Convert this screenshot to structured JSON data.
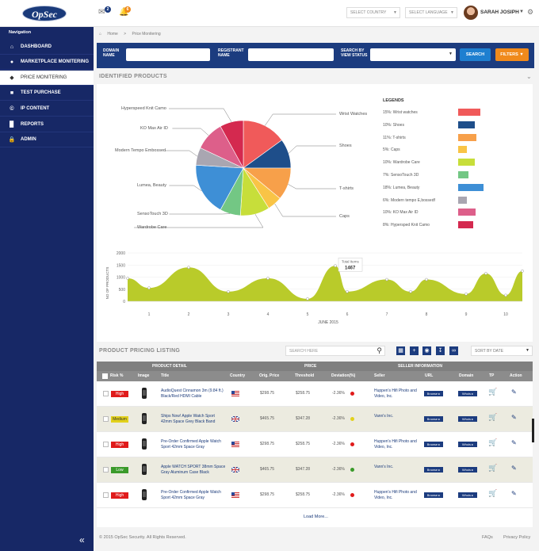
{
  "header": {
    "logo": "OpSec",
    "mail_count": "2",
    "notif_count": "6",
    "country_select": "SELECT COUNTRY",
    "language_select": "SELECT LANGUAGE",
    "user_name": "SARAH JOSIPH"
  },
  "sidebar": {
    "heading": "Navigation",
    "items": [
      {
        "label": "DASHBOARD",
        "icon": "home-icon"
      },
      {
        "label": "MARKETPLACE MONITERING",
        "icon": "user-icon"
      },
      {
        "label": "PRICE MONITERING",
        "icon": "tag-icon"
      },
      {
        "label": "TEST PURCHASE",
        "icon": "ticket-icon"
      },
      {
        "label": "IP CONTENT",
        "icon": "copyright-icon"
      },
      {
        "label": "REPORTS",
        "icon": "bar-chart-icon"
      },
      {
        "label": "ADMIN",
        "icon": "lock-icon"
      }
    ]
  },
  "breadcrumb": {
    "home": "Home",
    "sep": ">",
    "current": "Price Monitering"
  },
  "search": {
    "domain_label": "DOMAIN NAME",
    "registrant_label": "REGISTRANT NAME",
    "status_label": "SEARCH BY VIEW STATUS",
    "search_btn": "SEARCH",
    "filters_btn": "FILTERS"
  },
  "identified": {
    "title": "IDENTIFIED PRODUCTS"
  },
  "pie": {
    "labels": [
      "Wrist Watches",
      "Shoes",
      "T-shirts",
      "Caps",
      "Wardrobe Care",
      "SensoTouch 3D",
      "Lumea, Beauty",
      "Modern Tempo Embossed",
      "KO Max Air ID",
      "Hyperspeed Knit Camo"
    ]
  },
  "legend": {
    "title": "LEGENDS",
    "items": [
      {
        "text": "15%: Wrist watches",
        "color": "#f05a5a"
      },
      {
        "text": "10%: Shoes",
        "color": "#1e4e8a"
      },
      {
        "text": "11%: T-shirts",
        "color": "#f7a04a"
      },
      {
        "text": "5%: Caps",
        "color": "#f9c446"
      },
      {
        "text": "10%: Wardrobe Care",
        "color": "#c7de3a"
      },
      {
        "text": "7%: SensoTouch 3D",
        "color": "#73c784"
      },
      {
        "text": "18%: Lumea, Beauty",
        "color": "#3e8fd6"
      },
      {
        "text": "6%: Modern tempo E,bossedf",
        "color": "#a9a6b1"
      },
      {
        "text": "10%: KO Max Air ID",
        "color": "#dd5f8a"
      },
      {
        "text": "8%: Hypersped Knit Camo",
        "color": "#d4294f"
      }
    ]
  },
  "chart_data": [
    {
      "type": "pie",
      "labels": [
        "Wrist Watches",
        "Shoes",
        "T-shirts",
        "Caps",
        "Wardrobe Care",
        "SensoTouch 3D",
        "Lumea, Beauty",
        "Modern Tempo Embossed",
        "KO Max Air ID",
        "Hyperspeed Knit Camo"
      ],
      "values": [
        15,
        10,
        11,
        5,
        10,
        7,
        18,
        6,
        10,
        8
      ],
      "colors": [
        "#f05a5a",
        "#1e4e8a",
        "#f7a04a",
        "#f9c446",
        "#c7de3a",
        "#73c784",
        "#3e8fd6",
        "#a9a6b1",
        "#dd5f8a",
        "#d4294f"
      ]
    },
    {
      "type": "area",
      "ylabel": "NO OF PRODUCTS",
      "xlabel": "JUNE 2015",
      "ylim": [
        0,
        2000
      ],
      "yticks": [
        "2000",
        "1500",
        "1000",
        "500",
        "0"
      ],
      "xticks": [
        "1",
        "2",
        "3",
        "4",
        "5",
        "6",
        "7",
        "8",
        "9",
        "10"
      ],
      "x": [
        0.5,
        1,
        2,
        3,
        4,
        5,
        5.7,
        6,
        7,
        7.6,
        8,
        9,
        9.5,
        10,
        10.4
      ],
      "y": [
        950,
        550,
        1400,
        400,
        950,
        100,
        1467,
        400,
        900,
        400,
        900,
        300,
        1150,
        250,
        1250
      ],
      "tooltip": {
        "label": "Total Items",
        "value": "1467"
      },
      "color": "#b9cb2a"
    }
  ],
  "listing": {
    "title": "PRODUCT PRICING LISTING",
    "search_placeholder": "SEARCH HERE",
    "sort": "SORT BY DATE",
    "load_more": "Load More..."
  },
  "table": {
    "group_product": "PRODUCT DETAIL",
    "group_price": "PRICE",
    "group_seller": "SELLER INFORMATION",
    "cols": {
      "risk": "Risk %",
      "image": "Image",
      "title": "Title",
      "country": "Country",
      "orig": "Orig. Price",
      "threshold": "Threshold",
      "deviation": "Deviation(%)",
      "seller": "Seller",
      "url": "URL",
      "domain": "Domain",
      "tp": "TP",
      "action": "Action"
    },
    "browse": "Browse",
    "whois": "Whois",
    "rows": [
      {
        "risk": "High",
        "risk_color": "#e01b1b",
        "title": "AudioQuest Cinnamon 3m (9.84 ft.) Black/Red HDMI Cable",
        "flag": "us",
        "orig": "$298.75",
        "threshold": "$258.75",
        "deviation": "-2.36%",
        "dot": "#e01b1b",
        "seller": "Huppen's Hifi Photo and Video, Inc.",
        "alt": false
      },
      {
        "risk": "Medium",
        "risk_color": "#e2d11c",
        "title": "Ships Now! Apple Watch Sport 42mm Space Grey Black Band",
        "flag": "uk",
        "orig": "$465.75",
        "threshold": "$347.28",
        "deviation": "-2.36%",
        "dot": "#e2d11c",
        "seller": "Vann's Inc.",
        "alt": true
      },
      {
        "risk": "High",
        "risk_color": "#e01b1b",
        "title": "Pre-Order Confirmed Apple Watch Sport 42mm Space Gray",
        "flag": "us",
        "orig": "$298.75",
        "threshold": "$258.75",
        "deviation": "-2.36%",
        "dot": "#e01b1b",
        "seller": "Huppen's Hifi Photo and Video, Inc.",
        "alt": false
      },
      {
        "risk": "Low",
        "risk_color": "#3a9a2a",
        "title": "Apple WATCH SPORT 38mm Space Gray Aluminum Case Black",
        "flag": "uk",
        "orig": "$465.75",
        "threshold": "$347.28",
        "deviation": "-2.36%",
        "dot": "#3a9a2a",
        "seller": "Vann's Inc.",
        "alt": true
      },
      {
        "risk": "High",
        "risk_color": "#e01b1b",
        "title": "Pre-Order Confirmed Apple Watch Sport 42mm Space Gray",
        "flag": "us",
        "orig": "$298.75",
        "threshold": "$258.75",
        "deviation": "-2.36%",
        "dot": "#e01b1b",
        "seller": "Huppen's Hifi Photo and Video, Inc.",
        "alt": false
      }
    ]
  },
  "footer": {
    "copyright": "© 2015 OpSec Security. All Rights Reserved.",
    "faqs": "FAQs",
    "privacy": "Privacy Policy"
  }
}
